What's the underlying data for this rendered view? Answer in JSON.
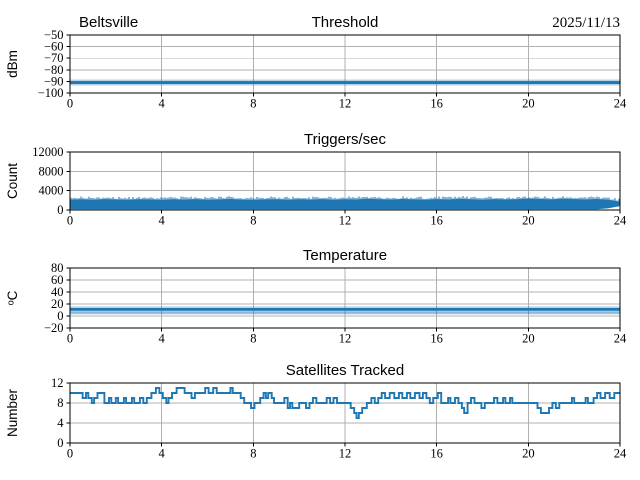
{
  "figure": {
    "background": "#ffffff",
    "header": {
      "station": "Beltsville",
      "date": "2025/11/13"
    }
  },
  "colors": {
    "series_blue": "#1f77b4",
    "grid": "#b0b0b0",
    "spine": "#000000",
    "text": "#000000"
  },
  "chart_data": [
    {
      "id": "threshold",
      "type": "line",
      "title": "Threshold",
      "title_left": "Beltsville",
      "title_right": "2025/11/13",
      "ylabel": "dBm",
      "xlim": [
        0,
        24
      ],
      "xticks": [
        0,
        4,
        8,
        12,
        16,
        20,
        24
      ],
      "ylim": [
        -100,
        -50
      ],
      "yticks": [
        -100,
        -90,
        -80,
        -70,
        -60,
        -50
      ],
      "grid": true,
      "legend": "none",
      "series": [
        {
          "name": "threshold-dbm",
          "type": "hline",
          "value": -91,
          "kind": "halo"
        }
      ]
    },
    {
      "id": "triggers",
      "type": "area",
      "title": "Triggers/sec",
      "ylabel": "Count",
      "xlim": [
        0,
        24
      ],
      "xticks": [
        0,
        4,
        8,
        12,
        16,
        20,
        24
      ],
      "ylim": [
        0,
        12000
      ],
      "yticks": [
        0,
        4000,
        8000,
        12000
      ],
      "grid": true,
      "legend": "none",
      "series": [
        {
          "name": "triggers-count-band",
          "type": "band",
          "x_start": 0,
          "x_step": 0.5,
          "top": [
            2150,
            2230,
            2120,
            2260,
            2180,
            2100,
            2240,
            2170,
            2080,
            2210,
            2150,
            2250,
            2120,
            2190,
            2270,
            2160,
            2090,
            2200,
            2240,
            2130,
            2210,
            2150,
            2260,
            2110,
            2230,
            2180,
            2330,
            2240,
            2150,
            2280,
            2200,
            2130,
            2250,
            2170,
            2300,
            2220,
            2140,
            2260,
            2180,
            2240,
            2360,
            2280,
            2200,
            2330,
            2250,
            2170,
            2280,
            2100,
            1700
          ],
          "bottom": [
            150,
            150,
            150,
            150,
            150,
            150,
            150,
            150,
            150,
            150,
            150,
            150,
            150,
            150,
            150,
            150,
            150,
            150,
            150,
            150,
            150,
            150,
            150,
            150,
            150,
            150,
            150,
            150,
            150,
            150,
            150,
            150,
            150,
            150,
            150,
            150,
            150,
            150,
            150,
            150,
            150,
            150,
            150,
            150,
            150,
            150,
            150,
            350,
            800
          ]
        }
      ]
    },
    {
      "id": "temperature",
      "type": "line",
      "title": "Temperature",
      "ylabel": "ᵒC",
      "xlim": [
        0,
        24
      ],
      "xticks": [
        0,
        4,
        8,
        12,
        16,
        20,
        24
      ],
      "ylim": [
        -20,
        80
      ],
      "yticks": [
        -20,
        0,
        20,
        40,
        60,
        80
      ],
      "grid": true,
      "legend": "none",
      "series": [
        {
          "name": "temperature-low",
          "type": "hline",
          "value": 5,
          "kind": "light"
        },
        {
          "name": "temperature-mean",
          "type": "hline",
          "value": 11,
          "kind": "halo"
        }
      ]
    },
    {
      "id": "satellites",
      "type": "line",
      "title": "Satellites Tracked",
      "ylabel": "Number",
      "xlim": [
        0,
        24
      ],
      "xticks": [
        0,
        4,
        8,
        12,
        16,
        20,
        24
      ],
      "ylim": [
        0,
        12
      ],
      "yticks": [
        0,
        4,
        8,
        12
      ],
      "grid": true,
      "legend": "none",
      "series": [
        {
          "name": "satellites-tracked",
          "type": "step",
          "points": [
            [
              0,
              10
            ],
            [
              0.55,
              9
            ],
            [
              0.7,
              10
            ],
            [
              0.8,
              9
            ],
            [
              0.95,
              8
            ],
            [
              1.05,
              9
            ],
            [
              1.2,
              10
            ],
            [
              1.5,
              8
            ],
            [
              1.7,
              9
            ],
            [
              1.8,
              8
            ],
            [
              2.0,
              9
            ],
            [
              2.1,
              8
            ],
            [
              2.35,
              9
            ],
            [
              2.45,
              8
            ],
            [
              2.7,
              9
            ],
            [
              2.8,
              8
            ],
            [
              3.05,
              9
            ],
            [
              3.2,
              8
            ],
            [
              3.35,
              9
            ],
            [
              3.55,
              10
            ],
            [
              3.75,
              11
            ],
            [
              3.9,
              10
            ],
            [
              4.05,
              9
            ],
            [
              4.2,
              8
            ],
            [
              4.3,
              9
            ],
            [
              4.45,
              10
            ],
            [
              4.65,
              11
            ],
            [
              5.0,
              10
            ],
            [
              5.3,
              9
            ],
            [
              5.45,
              10
            ],
            [
              5.9,
              11
            ],
            [
              6.05,
              10
            ],
            [
              6.25,
              11
            ],
            [
              6.4,
              10
            ],
            [
              7.0,
              11
            ],
            [
              7.1,
              10
            ],
            [
              7.45,
              9
            ],
            [
              7.6,
              8
            ],
            [
              7.9,
              7
            ],
            [
              8.05,
              8
            ],
            [
              8.3,
              9
            ],
            [
              8.45,
              10
            ],
            [
              8.55,
              9
            ],
            [
              8.65,
              10
            ],
            [
              8.8,
              9
            ],
            [
              8.9,
              8
            ],
            [
              9.35,
              9
            ],
            [
              9.5,
              7
            ],
            [
              9.6,
              8
            ],
            [
              9.7,
              7
            ],
            [
              10.0,
              8
            ],
            [
              10.3,
              7
            ],
            [
              10.45,
              8
            ],
            [
              10.6,
              9
            ],
            [
              10.75,
              8
            ],
            [
              11.2,
              9
            ],
            [
              11.35,
              8
            ],
            [
              11.5,
              9
            ],
            [
              11.65,
              8
            ],
            [
              12.25,
              7
            ],
            [
              12.4,
              6
            ],
            [
              12.5,
              5
            ],
            [
              12.6,
              6
            ],
            [
              12.75,
              7
            ],
            [
              12.95,
              8
            ],
            [
              13.15,
              9
            ],
            [
              13.3,
              8
            ],
            [
              13.45,
              9
            ],
            [
              13.6,
              10
            ],
            [
              13.75,
              9
            ],
            [
              13.95,
              10
            ],
            [
              14.15,
              9
            ],
            [
              14.35,
              10
            ],
            [
              14.5,
              9
            ],
            [
              14.7,
              10
            ],
            [
              14.85,
              9
            ],
            [
              15.05,
              10
            ],
            [
              15.25,
              9
            ],
            [
              15.4,
              10
            ],
            [
              15.55,
              9
            ],
            [
              15.7,
              8
            ],
            [
              15.85,
              9
            ],
            [
              16.05,
              10
            ],
            [
              16.2,
              8
            ],
            [
              16.5,
              9
            ],
            [
              16.6,
              8
            ],
            [
              16.8,
              9
            ],
            [
              16.95,
              8
            ],
            [
              17.1,
              7
            ],
            [
              17.2,
              6
            ],
            [
              17.35,
              8
            ],
            [
              17.5,
              9
            ],
            [
              17.65,
              8
            ],
            [
              17.95,
              7
            ],
            [
              18.1,
              8
            ],
            [
              18.5,
              9
            ],
            [
              18.65,
              8
            ],
            [
              18.9,
              9
            ],
            [
              19.0,
              8
            ],
            [
              19.2,
              9
            ],
            [
              19.3,
              8
            ],
            [
              20.4,
              7
            ],
            [
              20.55,
              6
            ],
            [
              20.9,
              7
            ],
            [
              21.05,
              8
            ],
            [
              21.2,
              7
            ],
            [
              21.35,
              8
            ],
            [
              21.9,
              9
            ],
            [
              22.0,
              8
            ],
            [
              22.5,
              9
            ],
            [
              22.6,
              8
            ],
            [
              22.85,
              9
            ],
            [
              23.0,
              10
            ],
            [
              23.15,
              9
            ],
            [
              23.35,
              10
            ],
            [
              23.55,
              9
            ],
            [
              23.75,
              10
            ],
            [
              24,
              10
            ]
          ]
        }
      ]
    }
  ]
}
